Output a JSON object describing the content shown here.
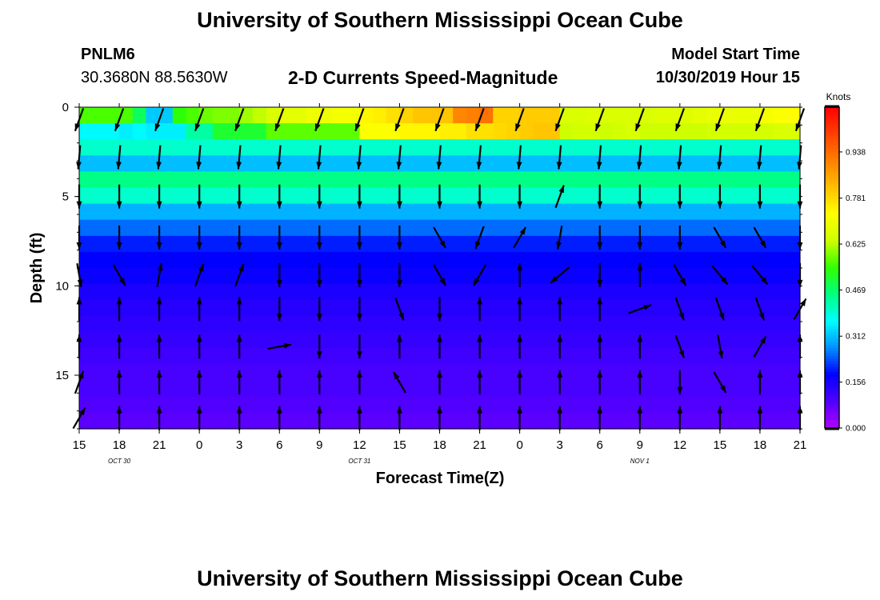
{
  "header": {
    "title": "University of Southern Mississippi Ocean Cube",
    "station_id": "PNLM6",
    "station_coords": "30.3680N 88.5630W",
    "subtitle": "2-D Currents Speed-Magnitude",
    "model_start_label": "Model Start Time",
    "model_start_value": "10/30/2019 Hour 15"
  },
  "footer": {
    "title": "University of Southern Mississippi Ocean Cube"
  },
  "chart_data": {
    "type": "heatmap",
    "title": "2-D Currents Speed-Magnitude",
    "xlabel": "Forecast Time(Z)",
    "ylabel": "Depth (ft)",
    "x_tick_labels": [
      "15",
      "18",
      "21",
      "0",
      "3",
      "6",
      "9",
      "12",
      "15",
      "18",
      "21",
      "0",
      "3",
      "6",
      "9",
      "12",
      "15",
      "18",
      "21"
    ],
    "date_labels": [
      {
        "text": "OCT 30",
        "tick_index": 1
      },
      {
        "text": "OCT 31",
        "tick_index": 7
      },
      {
        "text": "NOV 1",
        "tick_index": 14
      }
    ],
    "y_ticks": [
      0,
      5,
      10,
      15
    ],
    "ylim": [
      0,
      18
    ],
    "colorbar": {
      "unit": "Knots",
      "range": [
        0.0,
        1.09
      ],
      "tick_labels": [
        "0.000",
        "0.156",
        "0.312",
        "0.469",
        "0.625",
        "0.781",
        "0.938"
      ],
      "colors": [
        "#b000ff",
        "#5000ff",
        "#0000ff",
        "#0090ff",
        "#00ffff",
        "#00ff80",
        "#30ff00",
        "#ccff00",
        "#ffff00",
        "#ffc000",
        "#ff8000",
        "#ff4000",
        "#ff0000"
      ]
    },
    "time_steps": 54,
    "depth_bins": 20,
    "arrow_times": 19,
    "arrow_depths": [
      0.7,
      2.8,
      5.0,
      7.3,
      9.4,
      11.3,
      13.4,
      15.4,
      17.4
    ],
    "speed_grid": [
      [
        0.56,
        0.56,
        0.56,
        0.56,
        0.48,
        0.32,
        0.32,
        0.54,
        0.56,
        0.58,
        0.59,
        0.59,
        0.61,
        0.63,
        0.66,
        0.68,
        0.68,
        0.7,
        0.7,
        0.71,
        0.71,
        0.74,
        0.75,
        0.77,
        0.79,
        0.81,
        0.81,
        0.81,
        0.9,
        0.91,
        0.93,
        0.79,
        0.79,
        0.8,
        0.8,
        0.8,
        0.66,
        0.66,
        0.67,
        0.66,
        0.66,
        0.66,
        0.66,
        0.67,
        0.67,
        0.67,
        0.68,
        0.69,
        0.69,
        0.69,
        0.69,
        0.71,
        0.72,
        0.73
      ],
      [
        0.36,
        0.36,
        0.36,
        0.35,
        0.36,
        0.35,
        0.35,
        0.35,
        0.43,
        0.43,
        0.51,
        0.51,
        0.51,
        0.51,
        0.57,
        0.57,
        0.57,
        0.57,
        0.57,
        0.57,
        0.57,
        0.72,
        0.72,
        0.72,
        0.74,
        0.74,
        0.74,
        0.75,
        0.75,
        0.77,
        0.77,
        0.78,
        0.79,
        0.8,
        0.81,
        0.81,
        0.64,
        0.65,
        0.65,
        0.64,
        0.65,
        0.66,
        0.64,
        0.64,
        0.64,
        0.64,
        0.64,
        0.65,
        0.65,
        0.65,
        0.65,
        0.65,
        0.66,
        0.66
      ],
      [
        0.4,
        0.4,
        0.4,
        0.4,
        0.4,
        0.4,
        0.4,
        0.4,
        0.4,
        0.4,
        0.4,
        0.4,
        0.4,
        0.4,
        0.4,
        0.4,
        0.4,
        0.4,
        0.4,
        0.4,
        0.4,
        0.4,
        0.4,
        0.4,
        0.4,
        0.4,
        0.4,
        0.4,
        0.4,
        0.4,
        0.4,
        0.4,
        0.4,
        0.4,
        0.4,
        0.4,
        0.4,
        0.4,
        0.4,
        0.4,
        0.4,
        0.4,
        0.4,
        0.4,
        0.4,
        0.4,
        0.4,
        0.4,
        0.4,
        0.4,
        0.4,
        0.4,
        0.4,
        0.4
      ],
      [
        0.31,
        0.31,
        0.31,
        0.31,
        0.31,
        0.31,
        0.31,
        0.31,
        0.31,
        0.31,
        0.31,
        0.31,
        0.31,
        0.31,
        0.31,
        0.31,
        0.31,
        0.31,
        0.31,
        0.31,
        0.31,
        0.31,
        0.31,
        0.31,
        0.31,
        0.31,
        0.31,
        0.31,
        0.31,
        0.31,
        0.31,
        0.31,
        0.31,
        0.31,
        0.31,
        0.31,
        0.31,
        0.31,
        0.31,
        0.31,
        0.31,
        0.31,
        0.31,
        0.31,
        0.31,
        0.31,
        0.31,
        0.31,
        0.31,
        0.31,
        0.31,
        0.31,
        0.31,
        0.31
      ],
      [
        0.45,
        0.45,
        0.45,
        0.45,
        0.45,
        0.45,
        0.45,
        0.45,
        0.45,
        0.45,
        0.45,
        0.45,
        0.45,
        0.45,
        0.45,
        0.45,
        0.45,
        0.45,
        0.45,
        0.45,
        0.45,
        0.45,
        0.45,
        0.45,
        0.45,
        0.45,
        0.45,
        0.45,
        0.45,
        0.45,
        0.45,
        0.45,
        0.45,
        0.45,
        0.45,
        0.45,
        0.45,
        0.45,
        0.45,
        0.45,
        0.45,
        0.45,
        0.45,
        0.45,
        0.45,
        0.45,
        0.45,
        0.45,
        0.45,
        0.45,
        0.45,
        0.45,
        0.45,
        0.45
      ],
      [
        0.4,
        0.4,
        0.4,
        0.4,
        0.4,
        0.4,
        0.4,
        0.4,
        0.4,
        0.4,
        0.4,
        0.4,
        0.4,
        0.4,
        0.4,
        0.4,
        0.4,
        0.4,
        0.4,
        0.4,
        0.4,
        0.4,
        0.4,
        0.4,
        0.4,
        0.4,
        0.4,
        0.4,
        0.4,
        0.4,
        0.4,
        0.4,
        0.4,
        0.4,
        0.4,
        0.4,
        0.4,
        0.4,
        0.4,
        0.4,
        0.4,
        0.4,
        0.4,
        0.4,
        0.4,
        0.4,
        0.4,
        0.4,
        0.4,
        0.4,
        0.4,
        0.4,
        0.4,
        0.4
      ],
      [
        0.3,
        0.3,
        0.3,
        0.3,
        0.3,
        0.3,
        0.3,
        0.3,
        0.3,
        0.3,
        0.3,
        0.3,
        0.3,
        0.3,
        0.3,
        0.3,
        0.3,
        0.3,
        0.3,
        0.3,
        0.3,
        0.3,
        0.3,
        0.3,
        0.3,
        0.3,
        0.3,
        0.3,
        0.3,
        0.3,
        0.3,
        0.3,
        0.3,
        0.3,
        0.3,
        0.3,
        0.3,
        0.3,
        0.3,
        0.3,
        0.3,
        0.3,
        0.3,
        0.3,
        0.3,
        0.3,
        0.3,
        0.3,
        0.3,
        0.3,
        0.3,
        0.3,
        0.3,
        0.3
      ],
      [
        0.25,
        0.25,
        0.25,
        0.25,
        0.25,
        0.25,
        0.25,
        0.25,
        0.25,
        0.25,
        0.25,
        0.25,
        0.25,
        0.25,
        0.25,
        0.25,
        0.25,
        0.25,
        0.25,
        0.25,
        0.25,
        0.25,
        0.25,
        0.25,
        0.25,
        0.25,
        0.25,
        0.25,
        0.25,
        0.25,
        0.25,
        0.25,
        0.25,
        0.25,
        0.25,
        0.25,
        0.25,
        0.25,
        0.25,
        0.25,
        0.25,
        0.25,
        0.25,
        0.25,
        0.25,
        0.25,
        0.25,
        0.25,
        0.25,
        0.25,
        0.25,
        0.25,
        0.25,
        0.25
      ],
      [
        0.2,
        0.2,
        0.2,
        0.2,
        0.2,
        0.2,
        0.2,
        0.2,
        0.2,
        0.2,
        0.2,
        0.2,
        0.2,
        0.2,
        0.2,
        0.2,
        0.2,
        0.2,
        0.2,
        0.2,
        0.2,
        0.2,
        0.2,
        0.2,
        0.2,
        0.2,
        0.2,
        0.2,
        0.2,
        0.2,
        0.2,
        0.2,
        0.2,
        0.2,
        0.2,
        0.2,
        0.2,
        0.2,
        0.2,
        0.2,
        0.2,
        0.2,
        0.2,
        0.2,
        0.2,
        0.2,
        0.2,
        0.2,
        0.2,
        0.2,
        0.2,
        0.2,
        0.2,
        0.2
      ],
      [
        0.18,
        0.18,
        0.18,
        0.18,
        0.18,
        0.18,
        0.18,
        0.18,
        0.18,
        0.18,
        0.18,
        0.18,
        0.18,
        0.18,
        0.18,
        0.18,
        0.18,
        0.18,
        0.18,
        0.18,
        0.18,
        0.18,
        0.18,
        0.18,
        0.18,
        0.18,
        0.18,
        0.18,
        0.18,
        0.18,
        0.18,
        0.18,
        0.18,
        0.18,
        0.18,
        0.18,
        0.18,
        0.18,
        0.18,
        0.18,
        0.18,
        0.18,
        0.18,
        0.18,
        0.18,
        0.18,
        0.18,
        0.18,
        0.18,
        0.18,
        0.18,
        0.18,
        0.18,
        0.18
      ],
      [
        0.17,
        0.17,
        0.17,
        0.17,
        0.17,
        0.17,
        0.17,
        0.17,
        0.17,
        0.17,
        0.17,
        0.17,
        0.17,
        0.17,
        0.17,
        0.17,
        0.17,
        0.17,
        0.17,
        0.17,
        0.17,
        0.17,
        0.17,
        0.17,
        0.17,
        0.17,
        0.17,
        0.17,
        0.17,
        0.17,
        0.17,
        0.17,
        0.17,
        0.17,
        0.17,
        0.17,
        0.17,
        0.17,
        0.17,
        0.17,
        0.17,
        0.17,
        0.17,
        0.17,
        0.17,
        0.17,
        0.17,
        0.17,
        0.17,
        0.17,
        0.17,
        0.17,
        0.17,
        0.17
      ],
      [
        0.15,
        0.15,
        0.15,
        0.15,
        0.15,
        0.15,
        0.15,
        0.15,
        0.15,
        0.15,
        0.15,
        0.15,
        0.15,
        0.15,
        0.15,
        0.15,
        0.15,
        0.15,
        0.15,
        0.15,
        0.15,
        0.15,
        0.15,
        0.15,
        0.15,
        0.15,
        0.15,
        0.15,
        0.15,
        0.15,
        0.15,
        0.15,
        0.15,
        0.15,
        0.15,
        0.15,
        0.15,
        0.15,
        0.15,
        0.15,
        0.15,
        0.15,
        0.15,
        0.15,
        0.15,
        0.15,
        0.15,
        0.15,
        0.15,
        0.15,
        0.15,
        0.15,
        0.15,
        0.15
      ],
      [
        0.14,
        0.14,
        0.14,
        0.14,
        0.14,
        0.14,
        0.14,
        0.14,
        0.14,
        0.14,
        0.14,
        0.14,
        0.14,
        0.14,
        0.14,
        0.14,
        0.14,
        0.14,
        0.14,
        0.14,
        0.14,
        0.14,
        0.14,
        0.14,
        0.14,
        0.14,
        0.14,
        0.14,
        0.14,
        0.14,
        0.14,
        0.14,
        0.14,
        0.14,
        0.14,
        0.14,
        0.14,
        0.14,
        0.14,
        0.14,
        0.14,
        0.14,
        0.14,
        0.14,
        0.14,
        0.14,
        0.14,
        0.14,
        0.14,
        0.14,
        0.14,
        0.14,
        0.14,
        0.14
      ],
      [
        0.13,
        0.13,
        0.13,
        0.13,
        0.13,
        0.13,
        0.13,
        0.13,
        0.13,
        0.13,
        0.13,
        0.13,
        0.13,
        0.13,
        0.13,
        0.13,
        0.13,
        0.13,
        0.13,
        0.13,
        0.13,
        0.13,
        0.13,
        0.13,
        0.13,
        0.13,
        0.13,
        0.13,
        0.13,
        0.13,
        0.13,
        0.13,
        0.13,
        0.13,
        0.13,
        0.13,
        0.13,
        0.13,
        0.13,
        0.13,
        0.13,
        0.13,
        0.13,
        0.13,
        0.13,
        0.13,
        0.13,
        0.13,
        0.13,
        0.13,
        0.13,
        0.13,
        0.13,
        0.13
      ],
      [
        0.12,
        0.12,
        0.12,
        0.12,
        0.12,
        0.12,
        0.12,
        0.12,
        0.12,
        0.12,
        0.12,
        0.12,
        0.12,
        0.12,
        0.12,
        0.12,
        0.12,
        0.12,
        0.12,
        0.12,
        0.12,
        0.12,
        0.12,
        0.12,
        0.12,
        0.12,
        0.12,
        0.12,
        0.12,
        0.12,
        0.12,
        0.12,
        0.12,
        0.12,
        0.12,
        0.12,
        0.12,
        0.12,
        0.12,
        0.12,
        0.12,
        0.12,
        0.12,
        0.12,
        0.12,
        0.12,
        0.12,
        0.12,
        0.12,
        0.12,
        0.12,
        0.12,
        0.12,
        0.12
      ],
      [
        0.11,
        0.11,
        0.11,
        0.11,
        0.11,
        0.11,
        0.11,
        0.11,
        0.11,
        0.11,
        0.11,
        0.11,
        0.11,
        0.11,
        0.11,
        0.11,
        0.11,
        0.11,
        0.11,
        0.11,
        0.11,
        0.11,
        0.11,
        0.11,
        0.11,
        0.11,
        0.11,
        0.11,
        0.11,
        0.11,
        0.11,
        0.11,
        0.11,
        0.11,
        0.11,
        0.11,
        0.11,
        0.11,
        0.11,
        0.11,
        0.11,
        0.11,
        0.11,
        0.11,
        0.11,
        0.11,
        0.11,
        0.11,
        0.11,
        0.11,
        0.11,
        0.11,
        0.11,
        0.11
      ],
      [
        0.1,
        0.1,
        0.1,
        0.1,
        0.1,
        0.1,
        0.1,
        0.1,
        0.1,
        0.1,
        0.1,
        0.1,
        0.1,
        0.1,
        0.1,
        0.1,
        0.1,
        0.1,
        0.1,
        0.1,
        0.1,
        0.1,
        0.1,
        0.1,
        0.1,
        0.1,
        0.1,
        0.1,
        0.1,
        0.1,
        0.1,
        0.1,
        0.1,
        0.1,
        0.1,
        0.1,
        0.1,
        0.1,
        0.1,
        0.1,
        0.1,
        0.1,
        0.1,
        0.1,
        0.1,
        0.1,
        0.1,
        0.1,
        0.1,
        0.1,
        0.1,
        0.1,
        0.1,
        0.1
      ],
      [
        0.1,
        0.1,
        0.1,
        0.1,
        0.1,
        0.1,
        0.1,
        0.1,
        0.1,
        0.1,
        0.1,
        0.1,
        0.1,
        0.1,
        0.1,
        0.1,
        0.1,
        0.1,
        0.1,
        0.1,
        0.1,
        0.1,
        0.1,
        0.1,
        0.1,
        0.1,
        0.1,
        0.1,
        0.1,
        0.1,
        0.1,
        0.1,
        0.1,
        0.1,
        0.1,
        0.1,
        0.1,
        0.1,
        0.1,
        0.1,
        0.1,
        0.1,
        0.1,
        0.1,
        0.1,
        0.1,
        0.1,
        0.1,
        0.1,
        0.1,
        0.1,
        0.1,
        0.1,
        0.1
      ],
      [
        0.09,
        0.09,
        0.09,
        0.09,
        0.09,
        0.09,
        0.09,
        0.09,
        0.09,
        0.09,
        0.09,
        0.09,
        0.09,
        0.09,
        0.09,
        0.09,
        0.09,
        0.09,
        0.09,
        0.09,
        0.09,
        0.09,
        0.09,
        0.09,
        0.09,
        0.09,
        0.09,
        0.09,
        0.09,
        0.09,
        0.09,
        0.09,
        0.09,
        0.09,
        0.09,
        0.09,
        0.09,
        0.09,
        0.09,
        0.09,
        0.09,
        0.09,
        0.09,
        0.09,
        0.09,
        0.09,
        0.09,
        0.09,
        0.09,
        0.09,
        0.09,
        0.09,
        0.09,
        0.09
      ],
      [
        0.08,
        0.08,
        0.08,
        0.08,
        0.08,
        0.08,
        0.08,
        0.08,
        0.08,
        0.08,
        0.08,
        0.08,
        0.08,
        0.08,
        0.08,
        0.08,
        0.08,
        0.08,
        0.08,
        0.08,
        0.08,
        0.08,
        0.08,
        0.08,
        0.08,
        0.08,
        0.08,
        0.08,
        0.08,
        0.08,
        0.08,
        0.08,
        0.08,
        0.08,
        0.08,
        0.08,
        0.08,
        0.08,
        0.08,
        0.08,
        0.08,
        0.08,
        0.08,
        0.08,
        0.08,
        0.08,
        0.08,
        0.08,
        0.08,
        0.08,
        0.08,
        0.08,
        0.08,
        0.08
      ]
    ],
    "arrow_angles_deg": [
      [
        200,
        200,
        200,
        200,
        200,
        200,
        200,
        200,
        200,
        200,
        200,
        200,
        200,
        200,
        200,
        200,
        200,
        200,
        200
      ],
      [
        185,
        185,
        185,
        185,
        185,
        185,
        185,
        185,
        185,
        185,
        185,
        185,
        185,
        185,
        185,
        185,
        185,
        185,
        185
      ],
      [
        180,
        180,
        180,
        180,
        180,
        180,
        180,
        180,
        180,
        180,
        180,
        180,
        20,
        180,
        180,
        180,
        180,
        180,
        180
      ],
      [
        180,
        180,
        180,
        180,
        180,
        180,
        180,
        180,
        180,
        150,
        200,
        30,
        190,
        180,
        180,
        180,
        150,
        150,
        180
      ],
      [
        170,
        150,
        10,
        20,
        20,
        180,
        180,
        180,
        180,
        150,
        210,
        0,
        230,
        180,
        0,
        150,
        140,
        140,
        180
      ],
      [
        0,
        0,
        0,
        0,
        0,
        180,
        180,
        180,
        160,
        180,
        0,
        0,
        0,
        0,
        70,
        160,
        160,
        160,
        30
      ],
      [
        0,
        0,
        0,
        0,
        0,
        80,
        180,
        180,
        0,
        0,
        0,
        0,
        0,
        0,
        0,
        160,
        170,
        30,
        0
      ],
      [
        20,
        0,
        0,
        0,
        0,
        0,
        0,
        0,
        330,
        0,
        0,
        0,
        0,
        0,
        0,
        180,
        150,
        0,
        0
      ],
      [
        30,
        0,
        0,
        0,
        0,
        0,
        0,
        0,
        0,
        0,
        0,
        0,
        0,
        0,
        0,
        0,
        0,
        0,
        0
      ]
    ]
  }
}
